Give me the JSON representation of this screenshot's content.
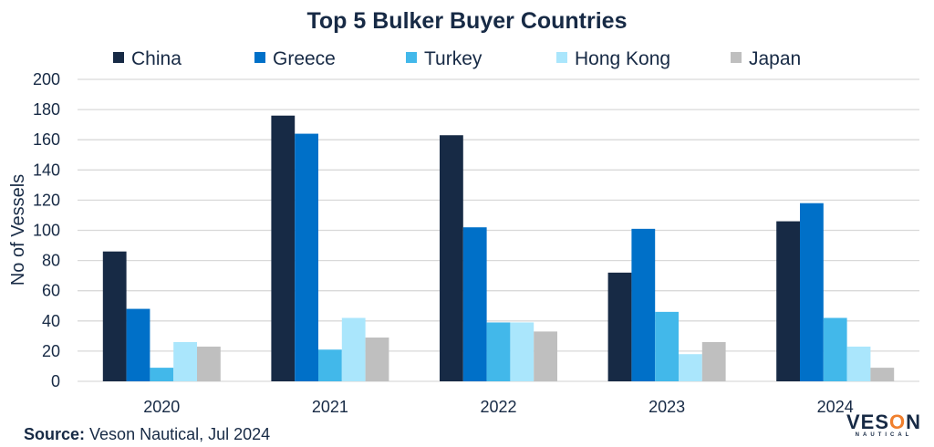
{
  "chart_data": {
    "type": "bar",
    "title": "Top 5 Bulker Buyer Countries",
    "xlabel": "",
    "ylabel": "No of Vessels",
    "ylim": [
      0,
      200
    ],
    "yticks": [
      0,
      20,
      40,
      60,
      80,
      100,
      120,
      140,
      160,
      180,
      200
    ],
    "grid": true,
    "legend_position": "top",
    "categories": [
      "2020",
      "2021",
      "2022",
      "2023",
      "2024"
    ],
    "series": [
      {
        "name": "China",
        "color": "#172a45",
        "values": [
          86,
          176,
          163,
          72,
          106
        ]
      },
      {
        "name": "Greece",
        "color": "#0070c8",
        "values": [
          48,
          164,
          102,
          101,
          118
        ]
      },
      {
        "name": "Turkey",
        "color": "#42b8ea",
        "values": [
          9,
          21,
          39,
          46,
          42
        ]
      },
      {
        "name": "Hong Kong",
        "color": "#aae6fc",
        "values": [
          26,
          42,
          39,
          18,
          23
        ]
      },
      {
        "name": "Japan",
        "color": "#bfbfbf",
        "values": [
          23,
          29,
          33,
          26,
          9
        ]
      }
    ]
  },
  "source": {
    "label": "Source:",
    "text": " Veson Nautical, Jul 2024"
  },
  "logo": {
    "main": "VESON",
    "sub": "NAUTICAL"
  }
}
